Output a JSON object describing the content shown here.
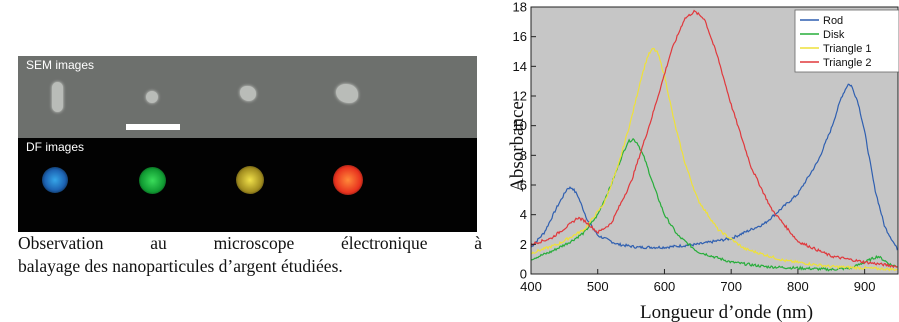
{
  "figure": {
    "sem_label": "SEM images",
    "df_label": "DF images",
    "caption_line1": "Observation au microscope électronique à",
    "caption_line2": "balayage des nanoparticules d’argent étudiées."
  },
  "chart_data": {
    "type": "line",
    "title": "",
    "xlabel": "Longueur d’onde (nm)",
    "ylabel": "Absorbance",
    "xlim": [
      400,
      950
    ],
    "ylim": [
      0,
      18
    ],
    "xticks": [
      400,
      500,
      600,
      700,
      800,
      900
    ],
    "yticks": [
      0,
      2,
      4,
      6,
      8,
      10,
      12,
      14,
      16,
      18
    ],
    "grid": false,
    "legend_position": "top-right",
    "background": "#c6c6c6",
    "series": [
      {
        "name": "Rod",
        "color": "#2f5fb0",
        "x": [
          400,
          420,
          440,
          455,
          462,
          470,
          485,
          500,
          530,
          560,
          600,
          650,
          700,
          750,
          800,
          830,
          850,
          865,
          875,
          880,
          890,
          900,
          915,
          930,
          950
        ],
        "y": [
          1.8,
          2.8,
          4.6,
          5.8,
          5.8,
          5.3,
          3.6,
          2.6,
          2.0,
          1.8,
          1.8,
          2.0,
          2.4,
          3.4,
          5.4,
          7.6,
          9.8,
          11.9,
          12.8,
          12.7,
          11.6,
          9.6,
          5.8,
          3.2,
          1.6
        ]
      },
      {
        "name": "Disk",
        "color": "#27ad3a",
        "x": [
          400,
          430,
          460,
          480,
          500,
          520,
          535,
          545,
          553,
          560,
          570,
          585,
          600,
          620,
          650,
          700,
          750,
          800,
          850,
          880,
          900,
          920,
          940,
          950
        ],
        "y": [
          1.0,
          1.5,
          2.2,
          2.8,
          4.0,
          6.0,
          7.8,
          8.9,
          9.1,
          8.8,
          7.8,
          5.8,
          4.0,
          2.6,
          1.5,
          0.8,
          0.5,
          0.4,
          0.3,
          0.4,
          0.8,
          1.2,
          0.6,
          0.5
        ]
      },
      {
        "name": "Triangle 1",
        "color": "#eee13a",
        "x": [
          400,
          440,
          480,
          510,
          530,
          550,
          565,
          575,
          583,
          590,
          600,
          615,
          630,
          650,
          680,
          720,
          780,
          850,
          900,
          950
        ],
        "y": [
          1.4,
          2.0,
          3.0,
          4.8,
          7.2,
          10.4,
          13.2,
          14.7,
          15.2,
          14.9,
          13.4,
          10.2,
          7.6,
          5.0,
          3.0,
          1.7,
          0.9,
          0.5,
          0.4,
          0.3
        ]
      },
      {
        "name": "Triangle 2",
        "color": "#e0383c",
        "x": [
          400,
          430,
          460,
          470,
          480,
          500,
          520,
          550,
          580,
          610,
          630,
          645,
          660,
          680,
          700,
          730,
          760,
          800,
          850,
          900,
          950
        ],
        "y": [
          2.0,
          2.4,
          3.4,
          3.8,
          3.6,
          2.8,
          3.4,
          6.2,
          10.4,
          15.0,
          17.2,
          17.7,
          17.2,
          14.6,
          11.4,
          7.2,
          4.4,
          2.2,
          1.2,
          0.8,
          0.5
        ]
      }
    ]
  }
}
